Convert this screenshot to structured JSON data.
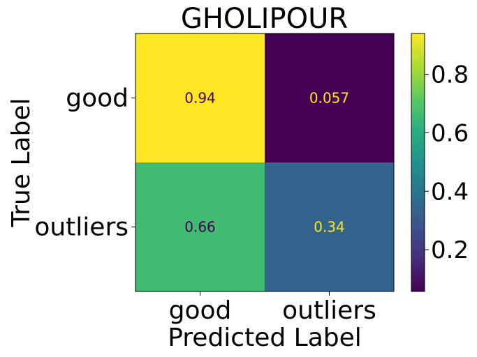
{
  "chart_data": {
    "type": "heatmap",
    "title": "GHOLIPOUR",
    "xlabel": "Predicted Label",
    "ylabel": "True Label",
    "x_categories": [
      "good",
      "outliers"
    ],
    "y_categories": [
      "good",
      "outliers"
    ],
    "values": [
      [
        "0.94",
        "0.057"
      ],
      [
        "0.66",
        "0.34"
      ]
    ],
    "colormap": "viridis",
    "colorbar": {
      "range": [
        0.057,
        0.94
      ],
      "ticks": [
        "0.2",
        "0.4",
        "0.6",
        "0.8"
      ]
    }
  }
}
